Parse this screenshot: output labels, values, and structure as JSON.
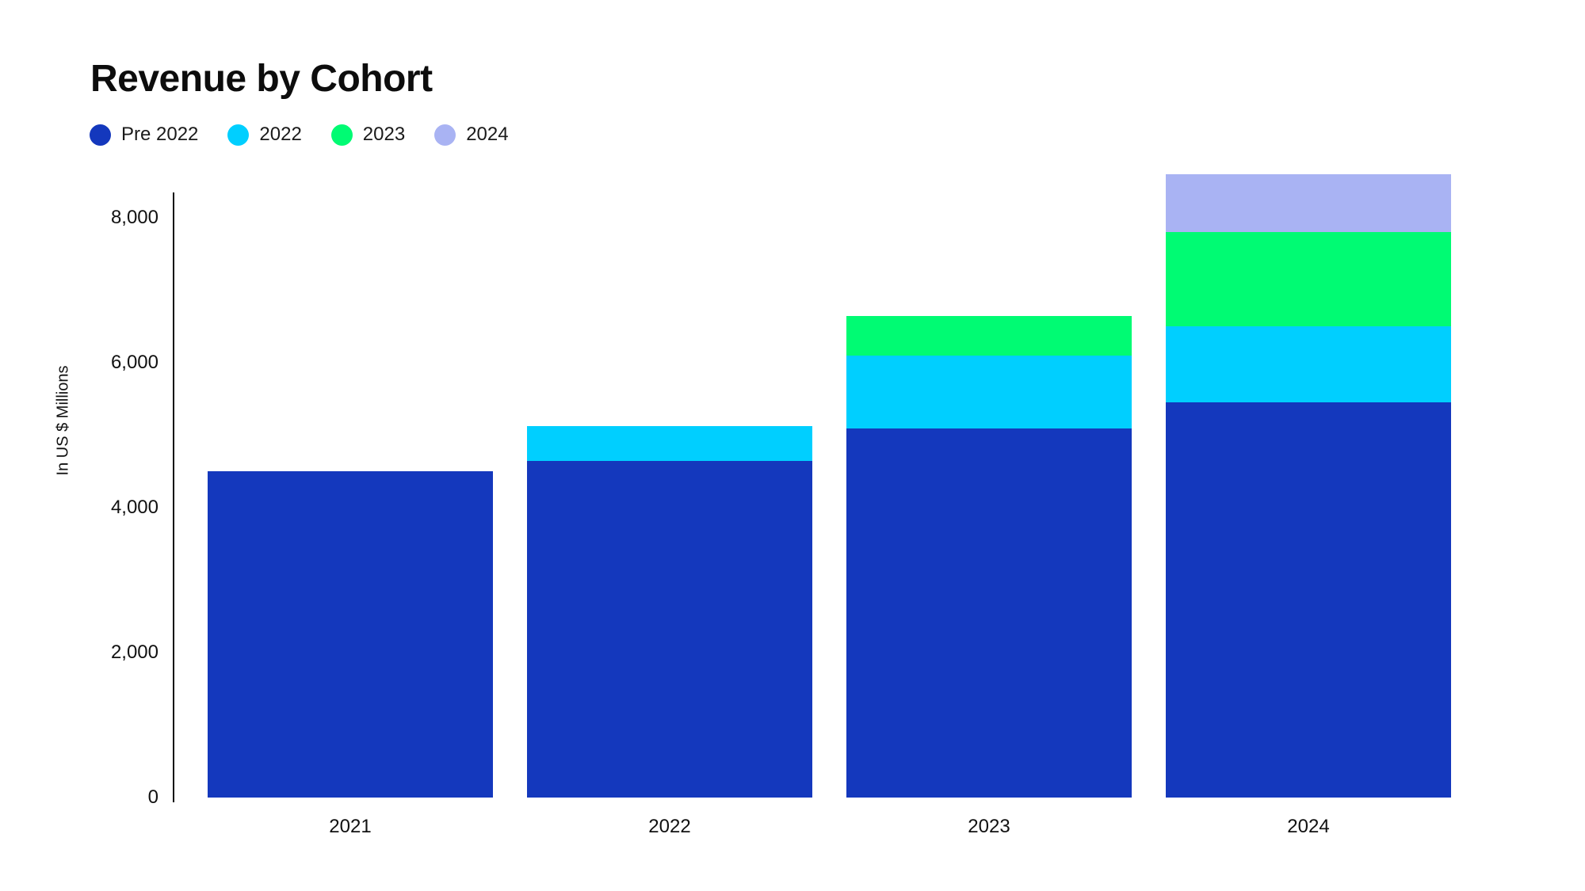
{
  "title": "Revenue by Cohort",
  "colors": {
    "pre_2022": "#1438bd",
    "cohort_2022": "#00cfff",
    "cohort_2023": "#00fb73",
    "cohort_2024": "#a9b3f3",
    "axis": "#0a0a0a",
    "text": "#111111",
    "background": "#ffffff"
  },
  "legend": {
    "items": [
      {
        "label": "Pre 2022",
        "color": "#1438bd"
      },
      {
        "label": "2022",
        "color": "#00cfff"
      },
      {
        "label": "2023",
        "color": "#00fb73"
      },
      {
        "label": "2024",
        "color": "#a9b3f3"
      }
    ]
  },
  "chart_data": {
    "type": "bar",
    "stacked": true,
    "title": "Revenue by Cohort",
    "categories": [
      "2021",
      "2022",
      "2023",
      "2024"
    ],
    "series": [
      {
        "name": "Pre 2022",
        "color": "#1438bd",
        "values": [
          4500,
          4650,
          5100,
          5450
        ]
      },
      {
        "name": "2022",
        "color": "#00cfff",
        "values": [
          0,
          480,
          1000,
          1050
        ]
      },
      {
        "name": "2023",
        "color": "#00fb73",
        "values": [
          0,
          0,
          550,
          1300
        ]
      },
      {
        "name": "2024",
        "color": "#a9b3f3",
        "values": [
          0,
          0,
          0,
          800
        ]
      }
    ],
    "totals": [
      4500,
      5130,
      6650,
      8600
    ],
    "xlabel": "",
    "ylabel": "In US $ Millions",
    "yticks": [
      "0",
      "2,000",
      "4,000",
      "6,000",
      "8,000"
    ],
    "ytick_values": [
      0,
      2000,
      4000,
      6000,
      8000
    ],
    "ylim": [
      0,
      8350
    ],
    "grid": false,
    "legend_position": "top-left"
  }
}
